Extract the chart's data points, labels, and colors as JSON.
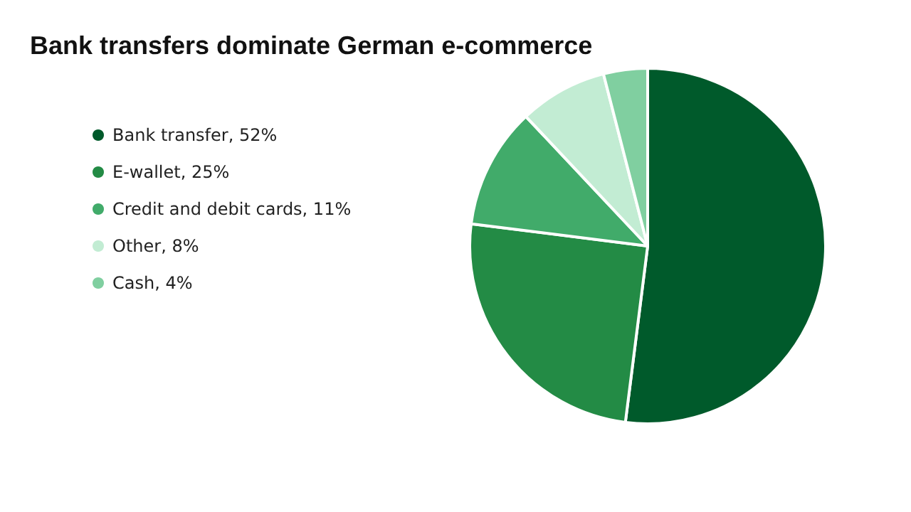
{
  "chart_data": {
    "type": "pie",
    "title": "Bank transfers dominate German e-commerce",
    "categories": [
      "Bank transfer, 52%",
      "E-wallet, 25%",
      "Credit and debit cards, 11%",
      "Other, 8%",
      "Cash, 4%"
    ],
    "values": [
      52,
      25,
      11,
      8,
      4
    ],
    "colors": [
      "#005a2b",
      "#238b45",
      "#41ab6a",
      "#c2ecd3",
      "#80cfa0"
    ],
    "legend": "left"
  }
}
